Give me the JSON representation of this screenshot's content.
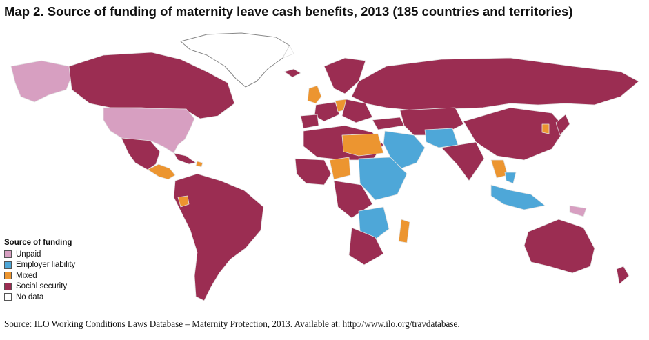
{
  "title": "Map 2.  Source of funding of maternity leave cash benefits, 2013 (185 countries and territories)",
  "legend": {
    "title": "Source of funding",
    "items": [
      {
        "label": "Unpaid",
        "color": "#d79fc1"
      },
      {
        "label": "Employer liability",
        "color": "#4ea7d8"
      },
      {
        "label": "Mixed",
        "color": "#ec9530"
      },
      {
        "label": "Social security",
        "color": "#9b2d52"
      },
      {
        "label": "No data",
        "color": "#ffffff"
      }
    ]
  },
  "colors": {
    "social_security": "#9b2d52",
    "employer_liability": "#4ea7d8",
    "mixed": "#ec9530",
    "unpaid": "#d79fc1",
    "no_data": "#ffffff",
    "border": "#d9d9d9"
  },
  "source": "Source: ILO Working Conditions Laws Database – Maternity Protection, 2013. Available at: http://www.ilo.org/travdatabase."
}
